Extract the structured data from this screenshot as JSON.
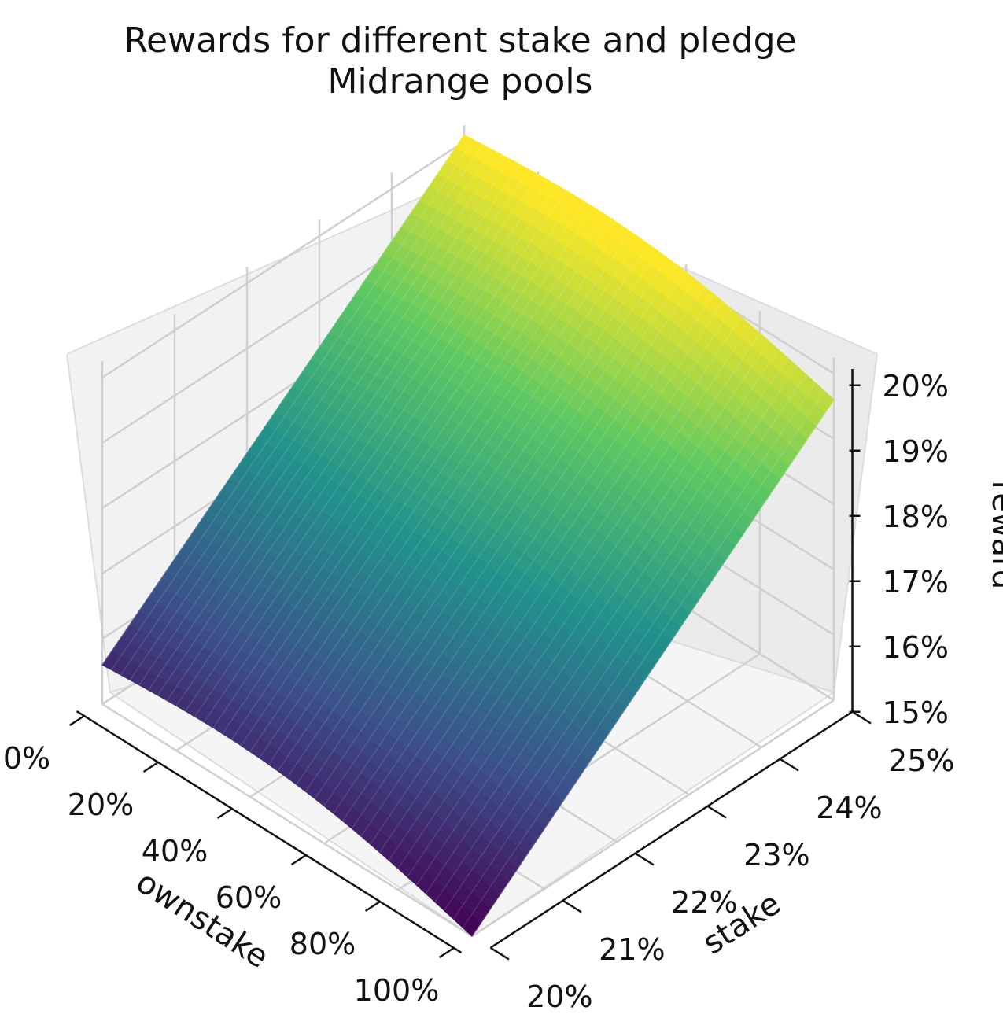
{
  "chart_data": {
    "type": "surface",
    "title": "Rewards for different stake and pledge",
    "subtitle": "Midrange pools",
    "x_axis": {
      "label": "ownstake",
      "ticks": [
        "0%",
        "20%",
        "40%",
        "60%",
        "80%",
        "100%"
      ],
      "range": [
        0,
        100
      ]
    },
    "y_axis": {
      "label": "stake",
      "ticks": [
        "20%",
        "21%",
        "22%",
        "23%",
        "24%",
        "25%"
      ],
      "range": [
        20,
        25
      ]
    },
    "z_axis": {
      "label": "reward",
      "ticks": [
        "15%",
        "16%",
        "17%",
        "18%",
        "19%",
        "20%"
      ],
      "range": [
        15,
        20
      ]
    },
    "surface_corners": {
      "ownstake_0_stake_20": 15.6,
      "ownstake_100_stake_20": 15.0,
      "ownstake_0_stake_25": 20.1,
      "ownstake_100_stake_25": 19.6
    },
    "colormap": "viridis",
    "colors": {
      "low": "#440154",
      "mid": "#21918c",
      "high": "#fde725"
    },
    "grid": true
  }
}
